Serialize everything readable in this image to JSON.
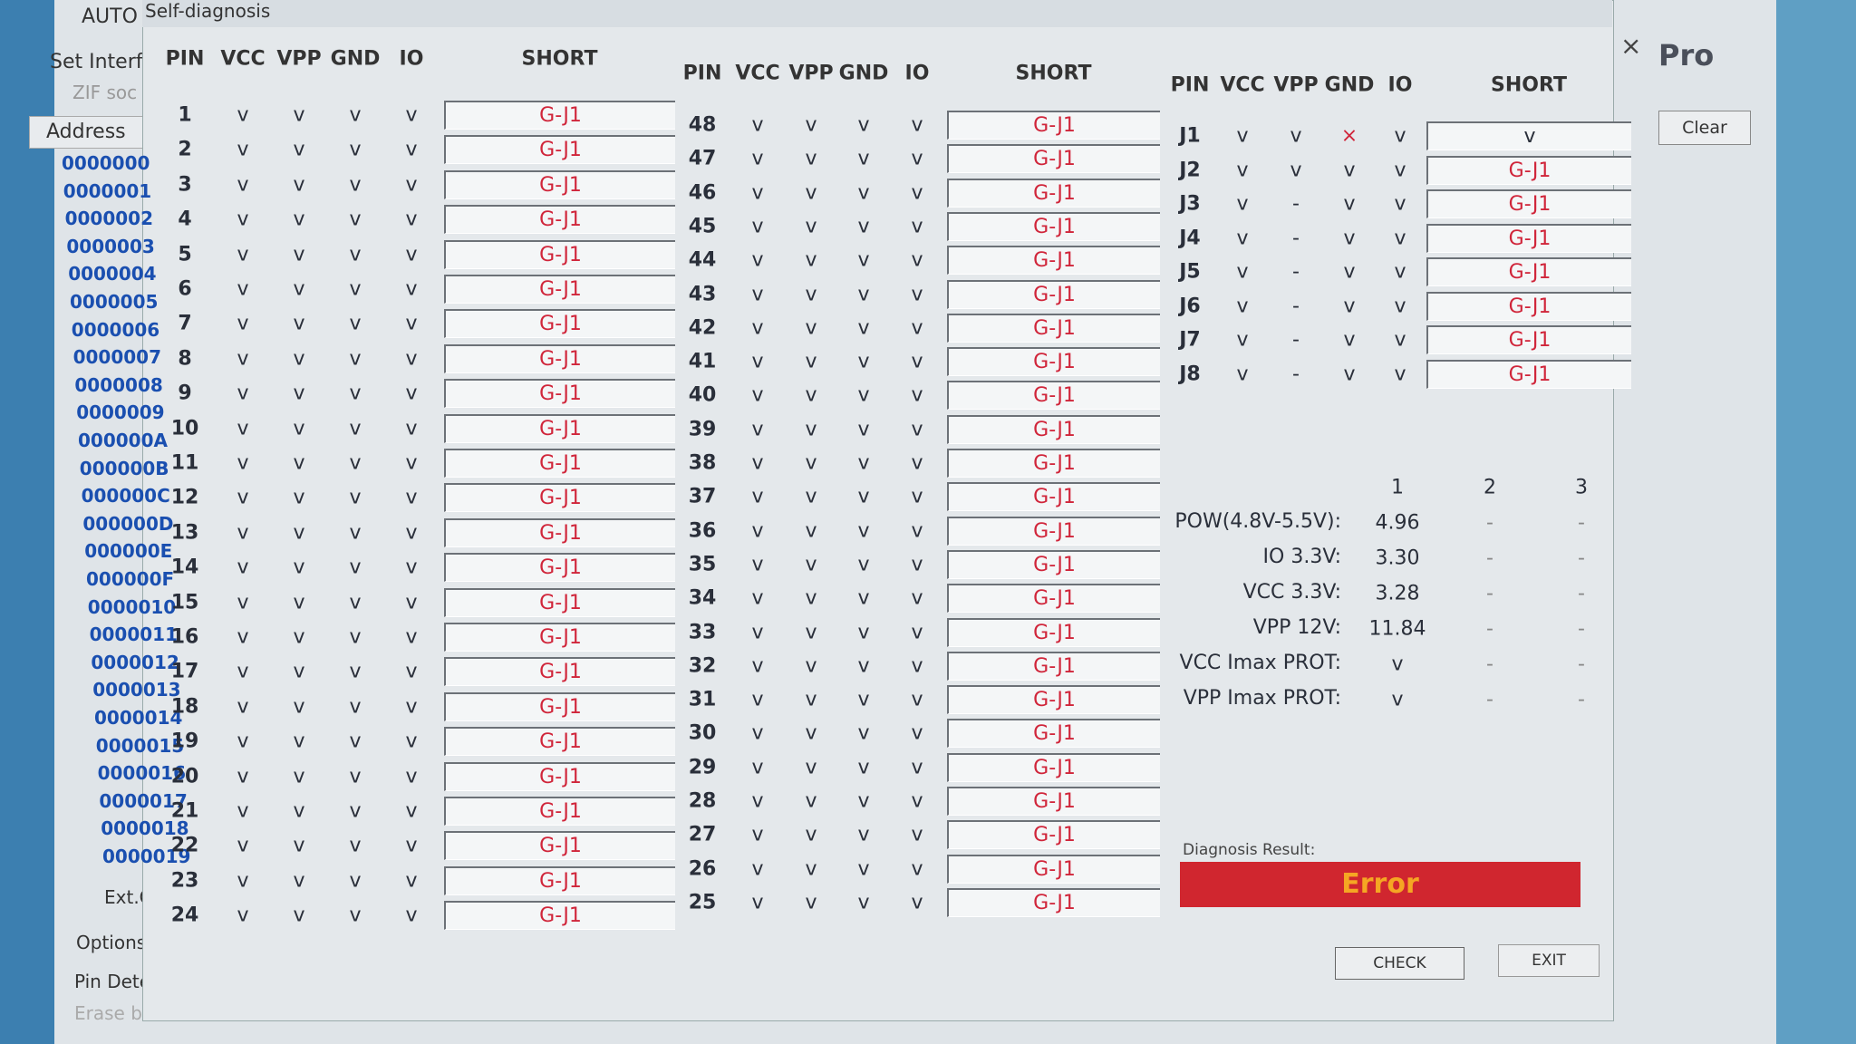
{
  "background": {
    "auto": "AUTO",
    "set_interface": "Set Interf",
    "zif": "ZIF soc",
    "address_header": "Address",
    "addresses": [
      "0000000",
      "0000001",
      "0000002",
      "0000003",
      "0000004",
      "0000005",
      "0000006",
      "0000007",
      "0000008",
      "0000009",
      "000000A",
      "000000B",
      "000000C",
      "000000D",
      "000000E",
      "000000F",
      "0000010",
      "0000011",
      "0000012",
      "0000013",
      "0000014",
      "0000015",
      "0000016",
      "0000017",
      "0000018",
      "0000019"
    ],
    "ext_csd": "Ext.CSD",
    "options": "Options",
    "pin_detect": "Pin Dete",
    "erase": "Erase be",
    "brand": "Pro",
    "clear": "Clear"
  },
  "window": {
    "title": "Self-diagnosis",
    "close": "×"
  },
  "tables": [
    {
      "headers": [
        "PIN",
        "VCC",
        "VPP",
        "GND",
        "IO",
        "SHORT"
      ],
      "rows": [
        [
          "1",
          "v",
          "v",
          "v",
          "v",
          "G-J1"
        ],
        [
          "2",
          "v",
          "v",
          "v",
          "v",
          "G-J1"
        ],
        [
          "3",
          "v",
          "v",
          "v",
          "v",
          "G-J1"
        ],
        [
          "4",
          "v",
          "v",
          "v",
          "v",
          "G-J1"
        ],
        [
          "5",
          "v",
          "v",
          "v",
          "v",
          "G-J1"
        ],
        [
          "6",
          "v",
          "v",
          "v",
          "v",
          "G-J1"
        ],
        [
          "7",
          "v",
          "v",
          "v",
          "v",
          "G-J1"
        ],
        [
          "8",
          "v",
          "v",
          "v",
          "v",
          "G-J1"
        ],
        [
          "9",
          "v",
          "v",
          "v",
          "v",
          "G-J1"
        ],
        [
          "10",
          "v",
          "v",
          "v",
          "v",
          "G-J1"
        ],
        [
          "11",
          "v",
          "v",
          "v",
          "v",
          "G-J1"
        ],
        [
          "12",
          "v",
          "v",
          "v",
          "v",
          "G-J1"
        ],
        [
          "13",
          "v",
          "v",
          "v",
          "v",
          "G-J1"
        ],
        [
          "14",
          "v",
          "v",
          "v",
          "v",
          "G-J1"
        ],
        [
          "15",
          "v",
          "v",
          "v",
          "v",
          "G-J1"
        ],
        [
          "16",
          "v",
          "v",
          "v",
          "v",
          "G-J1"
        ],
        [
          "17",
          "v",
          "v",
          "v",
          "v",
          "G-J1"
        ],
        [
          "18",
          "v",
          "v",
          "v",
          "v",
          "G-J1"
        ],
        [
          "19",
          "v",
          "v",
          "v",
          "v",
          "G-J1"
        ],
        [
          "20",
          "v",
          "v",
          "v",
          "v",
          "G-J1"
        ],
        [
          "21",
          "v",
          "v",
          "v",
          "v",
          "G-J1"
        ],
        [
          "22",
          "v",
          "v",
          "v",
          "v",
          "G-J1"
        ],
        [
          "23",
          "v",
          "v",
          "v",
          "v",
          "G-J1"
        ],
        [
          "24",
          "v",
          "v",
          "v",
          "v",
          "G-J1"
        ]
      ]
    },
    {
      "headers": [
        "PIN",
        "VCC",
        "VPP",
        "GND",
        "IO",
        "SHORT"
      ],
      "rows": [
        [
          "48",
          "v",
          "v",
          "v",
          "v",
          "G-J1"
        ],
        [
          "47",
          "v",
          "v",
          "v",
          "v",
          "G-J1"
        ],
        [
          "46",
          "v",
          "v",
          "v",
          "v",
          "G-J1"
        ],
        [
          "45",
          "v",
          "v",
          "v",
          "v",
          "G-J1"
        ],
        [
          "44",
          "v",
          "v",
          "v",
          "v",
          "G-J1"
        ],
        [
          "43",
          "v",
          "v",
          "v",
          "v",
          "G-J1"
        ],
        [
          "42",
          "v",
          "v",
          "v",
          "v",
          "G-J1"
        ],
        [
          "41",
          "v",
          "v",
          "v",
          "v",
          "G-J1"
        ],
        [
          "40",
          "v",
          "v",
          "v",
          "v",
          "G-J1"
        ],
        [
          "39",
          "v",
          "v",
          "v",
          "v",
          "G-J1"
        ],
        [
          "38",
          "v",
          "v",
          "v",
          "v",
          "G-J1"
        ],
        [
          "37",
          "v",
          "v",
          "v",
          "v",
          "G-J1"
        ],
        [
          "36",
          "v",
          "v",
          "v",
          "v",
          "G-J1"
        ],
        [
          "35",
          "v",
          "v",
          "v",
          "v",
          "G-J1"
        ],
        [
          "34",
          "v",
          "v",
          "v",
          "v",
          "G-J1"
        ],
        [
          "33",
          "v",
          "v",
          "v",
          "v",
          "G-J1"
        ],
        [
          "32",
          "v",
          "v",
          "v",
          "v",
          "G-J1"
        ],
        [
          "31",
          "v",
          "v",
          "v",
          "v",
          "G-J1"
        ],
        [
          "30",
          "v",
          "v",
          "v",
          "v",
          "G-J1"
        ],
        [
          "29",
          "v",
          "v",
          "v",
          "v",
          "G-J1"
        ],
        [
          "28",
          "v",
          "v",
          "v",
          "v",
          "G-J1"
        ],
        [
          "27",
          "v",
          "v",
          "v",
          "v",
          "G-J1"
        ],
        [
          "26",
          "v",
          "v",
          "v",
          "v",
          "G-J1"
        ],
        [
          "25",
          "v",
          "v",
          "v",
          "v",
          "G-J1"
        ]
      ]
    },
    {
      "headers": [
        "PIN",
        "VCC",
        "VPP",
        "GND",
        "IO",
        "SHORT"
      ],
      "rows": [
        [
          "J1",
          "v",
          "v",
          "×",
          "v",
          "v"
        ],
        [
          "J2",
          "v",
          "v",
          "v",
          "v",
          "G-J1"
        ],
        [
          "J3",
          "v",
          "-",
          "v",
          "v",
          "G-J1"
        ],
        [
          "J4",
          "v",
          "-",
          "v",
          "v",
          "G-J1"
        ],
        [
          "J5",
          "v",
          "-",
          "v",
          "v",
          "G-J1"
        ],
        [
          "J6",
          "v",
          "-",
          "v",
          "v",
          "G-J1"
        ],
        [
          "J7",
          "v",
          "-",
          "v",
          "v",
          "G-J1"
        ],
        [
          "J8",
          "v",
          "-",
          "v",
          "v",
          "G-J1"
        ]
      ]
    }
  ],
  "power": {
    "columns": [
      "1",
      "2",
      "3"
    ],
    "rows": [
      [
        "POW(4.8V-5.5V):",
        "4.96",
        "-",
        "-"
      ],
      [
        "IO 3.3V:",
        "3.30",
        "-",
        "-"
      ],
      [
        "VCC 3.3V:",
        "3.28",
        "-",
        "-"
      ],
      [
        "VPP 12V:",
        "11.84",
        "-",
        "-"
      ],
      [
        "VCC Imax PROT:",
        "v",
        "-",
        "-"
      ],
      [
        "VPP Imax PROT:",
        "v",
        "-",
        "-"
      ]
    ]
  },
  "result": {
    "label": "Diagnosis Result:",
    "value": "Error"
  },
  "buttons": {
    "check": "CHECK",
    "exit": "EXIT"
  }
}
